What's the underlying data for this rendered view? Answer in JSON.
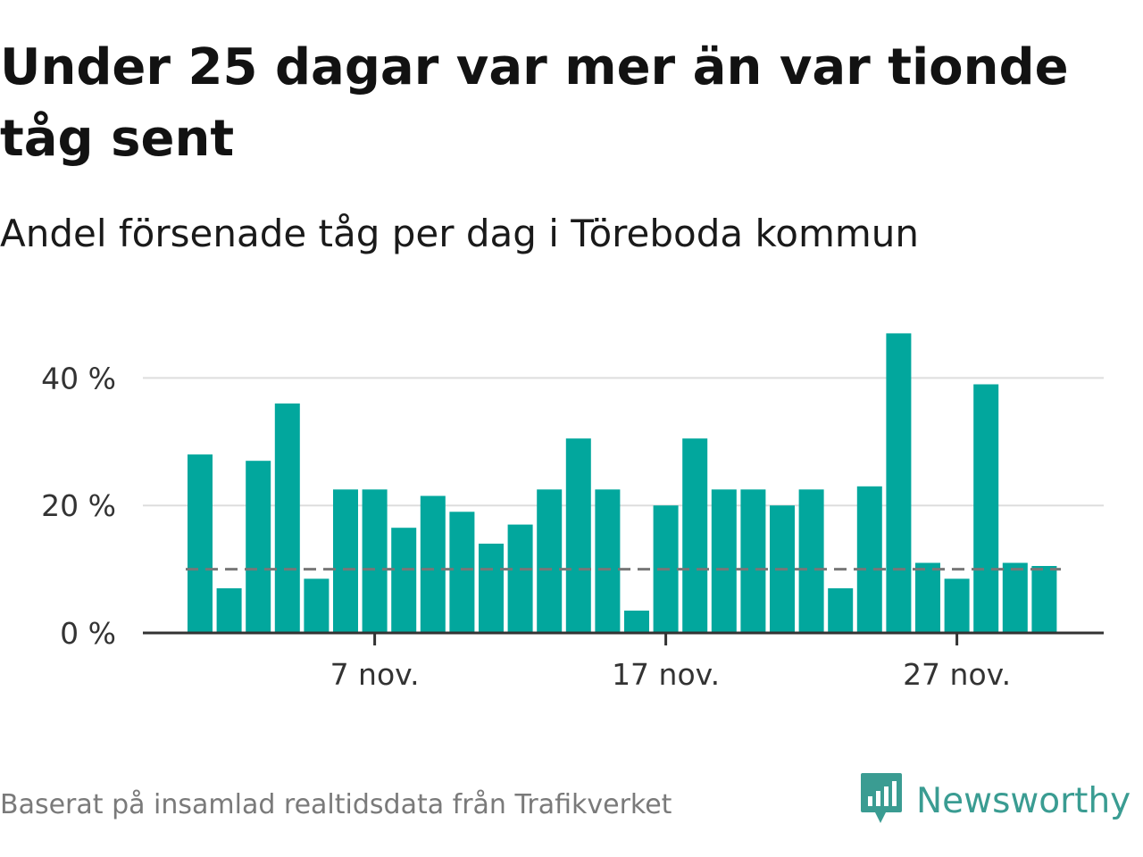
{
  "header": {
    "title": "Under 25 dagar var mer än var tionde tåg sent",
    "subtitle": "Andel försenade tåg per dag i Töreboda kommun"
  },
  "footer": {
    "source": "Baserat på insamlad realtidsdata från Trafikverket",
    "brand": "Newsworthy"
  },
  "colors": {
    "bar": "#02a79d",
    "reference_line": "#777777",
    "grid": "#dddddd",
    "axis": "#333333",
    "brand": "#3a9c92"
  },
  "icons": {
    "brand_logo": "newsworthy-logo-icon"
  },
  "chart_data": {
    "type": "bar",
    "title": "Andel försenade tåg per dag i Töreboda kommun",
    "xlabel": "",
    "ylabel": "",
    "unit": "%",
    "x": [
      "2023-11-01",
      "2023-11-02",
      "2023-11-03",
      "2023-11-04",
      "2023-11-05",
      "2023-11-06",
      "2023-11-07",
      "2023-11-08",
      "2023-11-09",
      "2023-11-10",
      "2023-11-11",
      "2023-11-12",
      "2023-11-13",
      "2023-11-14",
      "2023-11-15",
      "2023-11-16",
      "2023-11-17",
      "2023-11-18",
      "2023-11-19",
      "2023-11-20",
      "2023-11-21",
      "2023-11-22",
      "2023-11-23",
      "2023-11-24",
      "2023-11-25",
      "2023-11-26",
      "2023-11-27",
      "2023-11-28",
      "2023-11-29",
      "2023-11-30"
    ],
    "values": [
      28,
      7,
      27,
      36,
      8.5,
      22.5,
      22.5,
      16.5,
      21.5,
      19,
      14,
      17,
      22.5,
      30.5,
      22.5,
      3.5,
      20,
      30.5,
      22.5,
      22.5,
      20,
      22.5,
      7,
      23,
      47,
      11,
      8.5,
      39,
      11,
      10.5
    ],
    "reference_line": 10,
    "ylim": [
      0,
      50
    ],
    "y_ticks": [
      {
        "value": 0,
        "label": "0 %"
      },
      {
        "value": 20,
        "label": "20 %"
      },
      {
        "value": 40,
        "label": "40 %"
      }
    ],
    "x_ticks": [
      {
        "date": "2023-11-07",
        "label": "7 nov."
      },
      {
        "date": "2023-11-17",
        "label": "17 nov."
      },
      {
        "date": "2023-11-27",
        "label": "27 nov."
      }
    ],
    "grid": true
  }
}
